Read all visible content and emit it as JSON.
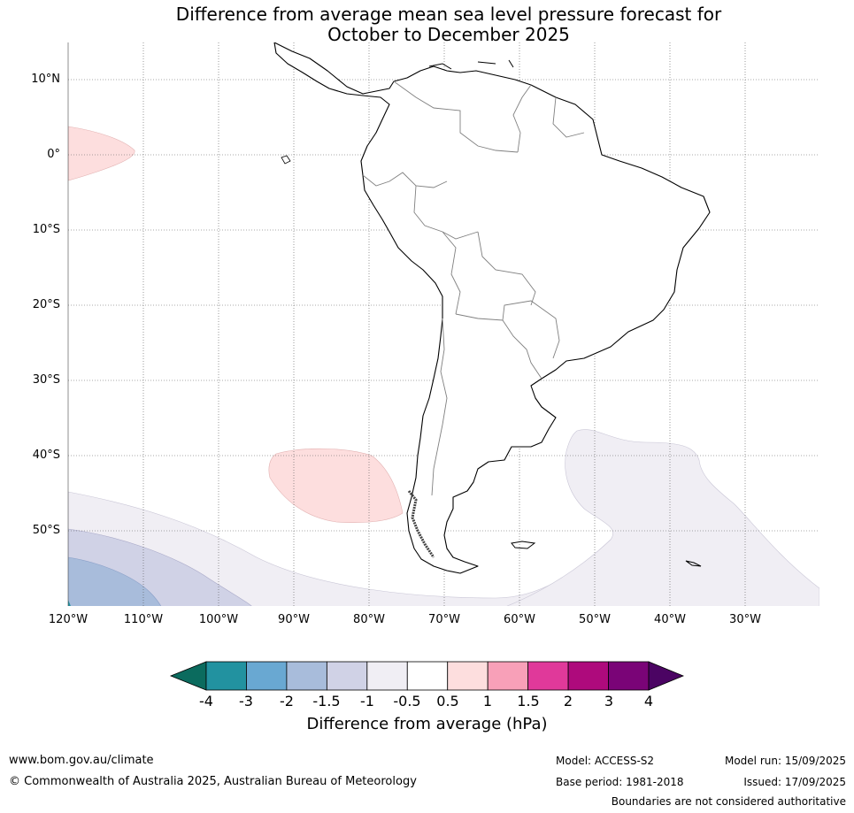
{
  "title": {
    "line1": "Difference from average mean sea level pressure forecast for",
    "line2": "October to December 2025"
  },
  "map": {
    "lat_labels": [
      "10°N",
      "0°",
      "10°S",
      "20°S",
      "30°S",
      "40°S",
      "50°S"
    ],
    "lon_labels": [
      "120°W",
      "110°W",
      "100°W",
      "90°W",
      "80°W",
      "70°W",
      "60°W",
      "50°W",
      "40°W",
      "30°W"
    ],
    "gridlines": "dotted",
    "land_color": "#ffffff",
    "coast_color": "#000000",
    "border_color": "#808080"
  },
  "colorbar": {
    "label": "Difference from average (hPa)",
    "ticks": [
      "-4",
      "-3",
      "-2",
      "-1.5",
      "-1",
      "-0.5",
      "0.5",
      "1",
      "1.5",
      "2",
      "3",
      "4"
    ],
    "colors": [
      "#0b6b5e",
      "#2292a0",
      "#69a8d2",
      "#a8bcdb",
      "#d0d2e6",
      "#f0eef4",
      "#ffffff",
      "#fddede",
      "#f8a0b8",
      "#e0399a",
      "#ae0a7c",
      "#7a0477",
      "#4b0463"
    ],
    "extend": "both"
  },
  "anomaly_regions": [
    {
      "color": "#fddede",
      "desc": "positive anomaly near equator west"
    },
    {
      "color": "#fddede",
      "desc": "positive anomaly off Chile"
    },
    {
      "color": "#f0eef4",
      "desc": "negative anomaly south Atlantic"
    },
    {
      "color": "#f0eef4",
      "desc": "negative anomaly south Pacific"
    },
    {
      "color": "#d0d2e6",
      "desc": "negative anomaly -1.5 band"
    },
    {
      "color": "#a8bcdb",
      "desc": "negative anomaly -2 band"
    }
  ],
  "footer": {
    "website": "www.bom.gov.au/climate",
    "copyright": "© Commonwealth of Australia 2025, Australian Bureau of Meteorology",
    "model": "Model: ACCESS-S2",
    "base_period": "Base period: 1981-2018",
    "model_run": "Model run: 15/09/2025",
    "issued": "Issued: 17/09/2025",
    "disclaimer": "Boundaries are not considered authoritative"
  }
}
